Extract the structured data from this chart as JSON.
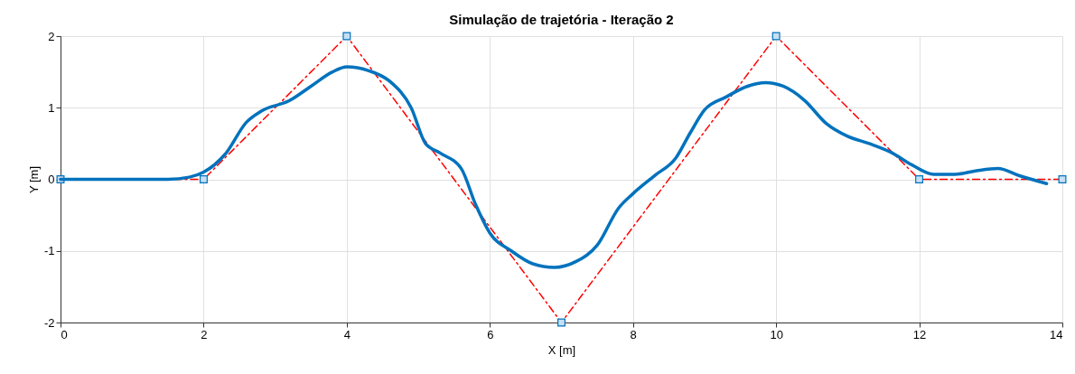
{
  "chart_data": {
    "type": "line",
    "title": "Simulação de trajetória - Iteração 2",
    "xlabel": "X [m]",
    "ylabel": "Y [m]",
    "xlim": [
      0,
      14
    ],
    "ylim": [
      -2,
      2
    ],
    "xticks": [
      0,
      2,
      4,
      6,
      8,
      10,
      12,
      14
    ],
    "yticks": [
      -2,
      -1,
      0,
      1,
      2
    ],
    "grid": true,
    "series": [
      {
        "color": "#ff0000",
        "line_style": "dashed",
        "marker": "square",
        "x": [
          0,
          2,
          4,
          7,
          10,
          12,
          14
        ],
        "values": [
          0,
          0,
          2,
          -2,
          2,
          0,
          0
        ]
      },
      {
        "color": "#0072bd",
        "line_style": "solid",
        "marker": "none",
        "x": [
          0,
          1.5,
          1.8,
          2.0,
          2.3,
          2.6,
          2.8,
          3.2,
          3.5,
          3.8,
          4.0,
          4.3,
          4.6,
          4.9,
          5.1,
          5.3,
          5.6,
          5.8,
          6.0,
          6.3,
          6.6,
          6.9,
          7.2,
          7.5,
          7.8,
          8.0,
          8.3,
          8.6,
          8.8,
          9.0,
          9.3,
          9.6,
          9.85,
          10.1,
          10.4,
          10.7,
          11.0,
          11.3,
          11.6,
          11.9,
          12.2,
          12.5,
          12.8,
          13.1,
          13.4,
          13.78
        ],
        "values": [
          0,
          0,
          0.03,
          0.1,
          0.35,
          0.8,
          0.95,
          1.1,
          1.3,
          1.5,
          1.57,
          1.52,
          1.37,
          1.0,
          0.5,
          0.37,
          0.15,
          -0.35,
          -0.75,
          -1.0,
          -1.18,
          -1.23,
          -1.15,
          -0.92,
          -0.4,
          -0.2,
          0.05,
          0.3,
          0.65,
          0.97,
          1.15,
          1.3,
          1.35,
          1.3,
          1.1,
          0.78,
          0.6,
          0.5,
          0.38,
          0.2,
          0.07,
          0.07,
          0.12,
          0.15,
          0.05,
          -0.06
        ]
      }
    ]
  }
}
